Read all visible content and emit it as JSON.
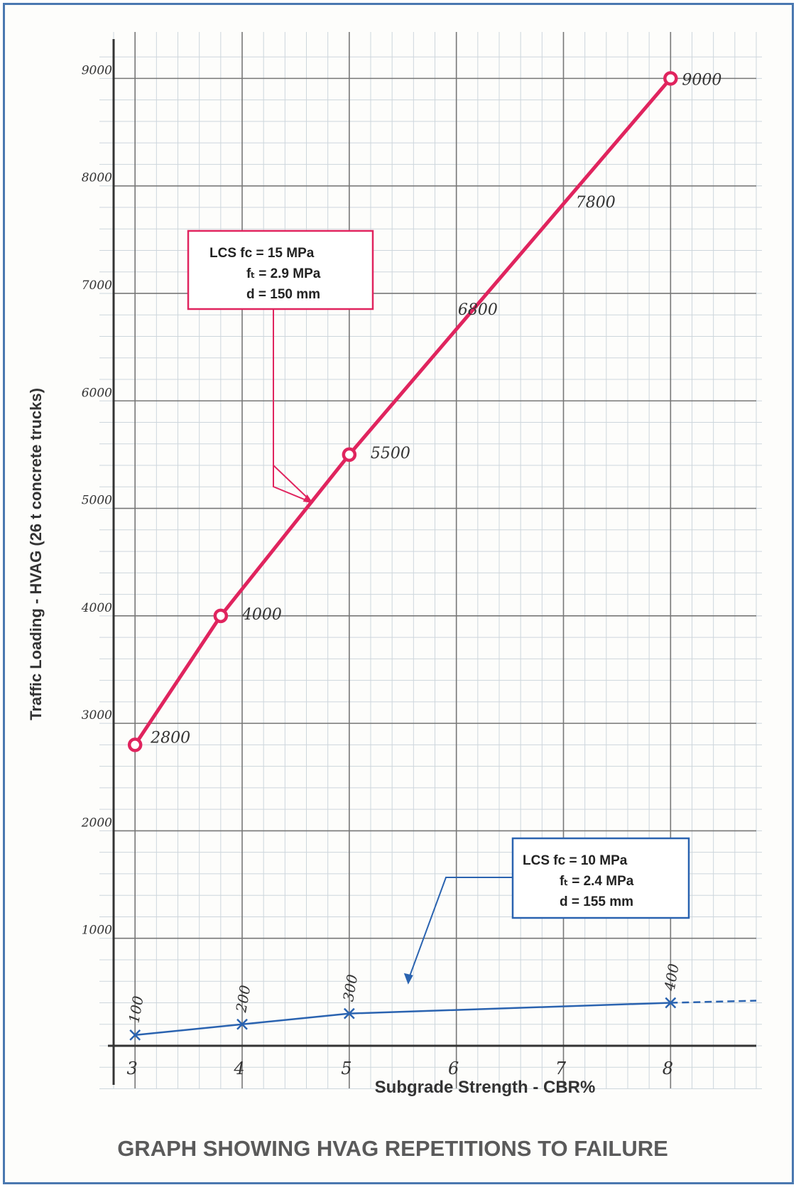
{
  "chart_data": {
    "type": "line",
    "title": "GRAPH SHOWING HVAG REPETITIONS TO FAILURE",
    "xlabel": "Subgrade Strength  -  CBR%",
    "ylabel": "Traffic Loading  - HVAG (26 t concrete trucks)",
    "x_ticks": [
      3,
      4,
      5,
      6,
      7,
      8
    ],
    "x_tick_labels": [
      "3",
      "4",
      "5",
      "6",
      "7",
      "8"
    ],
    "y_ticks": [
      1000,
      2000,
      3000,
      4000,
      5000,
      6000,
      7000,
      8000,
      9000
    ],
    "y_tick_labels": [
      "1000",
      "2000",
      "3000",
      "4000",
      "5000",
      "6000",
      "7000",
      "8000",
      "9000"
    ],
    "xlim": [
      2.8,
      8.8
    ],
    "ylim": [
      0,
      9300
    ],
    "grid": true,
    "series": [
      {
        "color": "#e0245e",
        "marker": "circle",
        "points": [
          {
            "x": 3,
            "y": 2800,
            "label": "2800"
          },
          {
            "x": 3.8,
            "y": 4000,
            "label": "4000"
          },
          {
            "x": 5,
            "y": 5500,
            "label": "5500"
          },
          {
            "x": 8,
            "y": 9000,
            "label": "9000"
          }
        ],
        "annotations": [
          {
            "x": 6.2,
            "y": 6800,
            "label": "6800"
          },
          {
            "x": 7.3,
            "y": 7800,
            "label": "7800"
          }
        ],
        "legend": {
          "lines": [
            "LCS  fᴄ = 15 MPa",
            "fₜ  =  2.9 MPa",
            "d  =  150 mm"
          ],
          "position": "upper-left"
        }
      },
      {
        "color": "#2a63b0",
        "marker": "x",
        "points": [
          {
            "x": 3,
            "y": 100,
            "label": "100"
          },
          {
            "x": 4,
            "y": 200,
            "label": "200"
          },
          {
            "x": 5,
            "y": 300,
            "label": "300"
          },
          {
            "x": 8,
            "y": 400,
            "label": "400"
          }
        ],
        "extension_to_x": 8.8,
        "legend": {
          "lines": [
            "LCS  fᴄ  =  10 MPa",
            "fₜ  =  2.4 MPa",
            "d  =  155 mm"
          ],
          "position": "lower-right"
        }
      }
    ]
  }
}
